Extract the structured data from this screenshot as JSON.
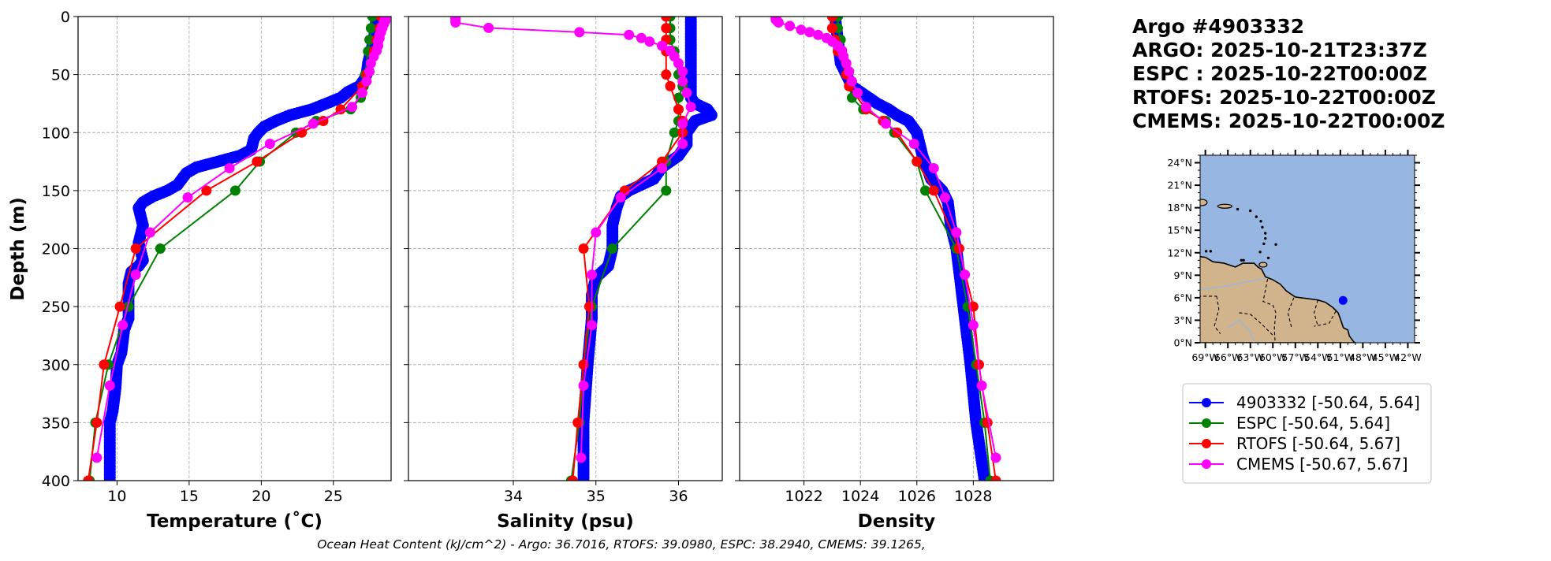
{
  "header": {
    "title_lines": [
      "Argo #4903332",
      "ARGO: 2025-10-21T23:37Z",
      "ESPC : 2025-10-22T00:00Z",
      "RTOFS: 2025-10-22T00:00Z",
      "CMEMS: 2025-10-22T00:00Z"
    ]
  },
  "footer": "Ocean Heat Content (kJ/cm^2) - Argo: 36.7016,  RTOFS: 39.0980,  ESPC: 38.2940,  CMEMS: 39.1265,",
  "colors": {
    "argo": "#0000ff",
    "espc": "#008000",
    "rtofs": "#ff0000",
    "cmems": "#ff00ff",
    "ocean": "#97b6e1",
    "land": "#d2b48c"
  },
  "legend": [
    {
      "label": "4903332 [-50.64, 5.64]",
      "key": "argo"
    },
    {
      "label": "ESPC [-50.64, 5.64]",
      "key": "espc"
    },
    {
      "label": "RTOFS [-50.64, 5.67]",
      "key": "rtofs"
    },
    {
      "label": "CMEMS [-50.67, 5.67]",
      "key": "cmems"
    }
  ],
  "map": {
    "lon_range": [
      -69.7,
      -41.1
    ],
    "lat_range": [
      0,
      25
    ],
    "lon_ticks": [
      "69°W",
      "66°W",
      "63°W",
      "60°W",
      "57°W",
      "54°W",
      "51°W",
      "48°W",
      "45°W",
      "42°W"
    ],
    "lon_tick_values": [
      -69,
      -66,
      -63,
      -60,
      -57,
      -54,
      -51,
      -48,
      -45,
      -42
    ],
    "lat_ticks": [
      "0°N",
      "3°N",
      "6°N",
      "9°N",
      "12°N",
      "15°N",
      "18°N",
      "21°N",
      "24°N"
    ],
    "lat_tick_values": [
      0,
      3,
      6,
      9,
      12,
      15,
      18,
      21,
      24
    ],
    "float_position": [
      -50.64,
      5.64
    ]
  },
  "chart_data": [
    {
      "type": "line",
      "xlabel": "Temperature (˚C)",
      "ylabel": "Depth (m)",
      "xlim": [
        7.3,
        29.0
      ],
      "ylim": [
        400,
        0
      ],
      "xticks": [
        10,
        15,
        20,
        25
      ],
      "yticks": [
        0,
        50,
        100,
        150,
        200,
        250,
        300,
        350,
        400
      ],
      "grid": true,
      "series": [
        {
          "name": "4903332",
          "key": "argo",
          "depth": [
            0,
            10,
            20,
            30,
            40,
            50,
            55,
            60,
            65,
            70,
            75,
            80,
            85,
            90,
            95,
            100,
            105,
            110,
            115,
            120,
            125,
            130,
            135,
            140,
            145,
            150,
            155,
            160,
            165,
            170,
            180,
            195,
            200,
            210,
            215,
            220,
            230,
            245,
            260,
            270,
            290,
            300,
            320,
            340,
            350,
            370,
            400
          ],
          "values": [
            28.0,
            27.9,
            27.8,
            27.6,
            27.4,
            27.3,
            27.1,
            26.8,
            26.0,
            25.5,
            24.5,
            23.5,
            22.0,
            21.0,
            20.2,
            19.8,
            19.5,
            19.4,
            19.3,
            18.5,
            17.0,
            15.5,
            14.8,
            14.5,
            14.2,
            13.5,
            12.5,
            11.8,
            11.5,
            11.6,
            11.8,
            11.5,
            11.6,
            11.8,
            11.5,
            11.0,
            10.8,
            10.8,
            10.8,
            10.5,
            10.3,
            10.0,
            9.9,
            9.7,
            9.5,
            9.5,
            9.5
          ]
        },
        {
          "name": "ESPC",
          "key": "espc",
          "depth": [
            0,
            10,
            20,
            30,
            50,
            60,
            70,
            80,
            90,
            100,
            125,
            150,
            200,
            250,
            300,
            350,
            400
          ],
          "values": [
            27.7,
            27.6,
            27.5,
            27.4,
            27.2,
            27.1,
            26.9,
            26.2,
            23.8,
            22.4,
            19.9,
            18.2,
            13.0,
            10.8,
            9.4,
            8.5,
            8.1
          ]
        },
        {
          "name": "RTOFS",
          "key": "rtofs",
          "depth": [
            0,
            10,
            20,
            30,
            50,
            60,
            80,
            90,
            100,
            125,
            150,
            200,
            250,
            300,
            350,
            400
          ],
          "values": [
            28.3,
            28.2,
            28.0,
            27.8,
            27.3,
            27.0,
            25.5,
            24.3,
            22.8,
            19.7,
            16.2,
            11.3,
            10.2,
            9.1,
            8.6,
            8.0
          ]
        },
        {
          "name": "CMEMS",
          "key": "cmems",
          "depth": [
            0.5,
            1.5,
            2.6,
            3.8,
            5.1,
            6.5,
            8.1,
            9.8,
            11.4,
            13.5,
            15.8,
            18.5,
            21.6,
            25.2,
            29.4,
            34.4,
            40.3,
            47.4,
            55.8,
            65.8,
            77.9,
            92.3,
            109.7,
            130.7,
            155.9,
            186.1,
            222.5,
            266.0,
            318.1,
            380.2
          ],
          "values": [
            28.6,
            28.6,
            28.6,
            28.6,
            28.5,
            28.5,
            28.4,
            28.4,
            28.3,
            28.3,
            28.2,
            28.2,
            28.1,
            28.1,
            28.0,
            27.8,
            27.6,
            27.5,
            27.3,
            27.0,
            26.3,
            23.6,
            20.6,
            17.8,
            14.9,
            12.3,
            11.3,
            10.4,
            9.5,
            8.6
          ]
        }
      ]
    },
    {
      "type": "line",
      "xlabel": "Salinity (psu)",
      "xlim": [
        32.73,
        36.53
      ],
      "ylim": [
        400,
        0
      ],
      "xticks": [
        34,
        35,
        36
      ],
      "yticks": [
        0,
        50,
        100,
        150,
        200,
        250,
        300,
        350,
        400
      ],
      "grid": true,
      "series": [
        {
          "name": "4903332",
          "key": "argo",
          "depth": [
            0,
            20,
            40,
            60,
            70,
            75,
            80,
            85,
            90,
            100,
            110,
            120,
            130,
            140,
            150,
            155,
            165,
            180,
            200,
            215,
            225,
            240,
            260,
            300,
            350,
            400
          ],
          "values": [
            36.15,
            36.15,
            36.15,
            36.15,
            36.15,
            36.2,
            36.35,
            36.4,
            36.2,
            36.1,
            36.1,
            36.0,
            35.8,
            35.7,
            35.4,
            35.3,
            35.25,
            35.2,
            35.2,
            35.15,
            35.0,
            34.95,
            34.95,
            34.9,
            34.85,
            34.85
          ]
        },
        {
          "name": "ESPC",
          "key": "espc",
          "depth": [
            0,
            10,
            20,
            30,
            50,
            60,
            70,
            80,
            90,
            100,
            125,
            150,
            200,
            250,
            300,
            350,
            400
          ],
          "values": [
            35.9,
            35.9,
            35.9,
            35.95,
            36.0,
            36.05,
            36.0,
            36.0,
            36.0,
            35.95,
            35.85,
            35.85,
            35.2,
            34.95,
            34.85,
            34.8,
            34.7
          ]
        },
        {
          "name": "RTOFS",
          "key": "rtofs",
          "depth": [
            0,
            10,
            20,
            30,
            50,
            60,
            80,
            90,
            100,
            125,
            150,
            200,
            250,
            300,
            350,
            400
          ],
          "values": [
            35.85,
            35.85,
            35.85,
            35.85,
            35.85,
            35.9,
            36.0,
            36.05,
            36.05,
            35.8,
            35.35,
            34.85,
            34.92,
            34.85,
            34.78,
            34.72
          ]
        },
        {
          "name": "CMEMS",
          "key": "cmems",
          "depth": [
            0.5,
            1.5,
            2.6,
            3.8,
            5.1,
            9.8,
            13.5,
            15.8,
            18.5,
            21.6,
            25.2,
            29.4,
            34.4,
            40.3,
            47.4,
            55.8,
            65.8,
            77.9,
            92.3,
            109.7,
            130.7,
            155.9,
            186.1,
            222.5,
            266.0,
            318.1,
            380.2
          ],
          "values": [
            33.3,
            33.3,
            33.3,
            33.3,
            33.3,
            33.7,
            34.8,
            35.4,
            35.55,
            35.65,
            35.8,
            35.9,
            35.95,
            36.0,
            36.05,
            36.05,
            36.1,
            36.15,
            36.05,
            36.05,
            35.8,
            35.3,
            35.0,
            34.95,
            34.95,
            34.85,
            34.82
          ]
        }
      ]
    },
    {
      "type": "line",
      "xlabel": "Density",
      "xlim": [
        1019.72,
        1030.84
      ],
      "ylim": [
        400,
        0
      ],
      "xticks": [
        1022,
        1024,
        1026,
        1028
      ],
      "yticks": [
        0,
        50,
        100,
        150,
        200,
        250,
        300,
        350,
        400
      ],
      "grid": true,
      "series": [
        {
          "name": "4903332",
          "key": "argo",
          "depth": [
            0,
            20,
            40,
            50,
            60,
            70,
            75,
            80,
            85,
            90,
            100,
            110,
            120,
            140,
            150,
            160,
            180,
            200,
            220,
            260,
            300,
            350,
            400
          ],
          "values": [
            1023.1,
            1023.2,
            1023.3,
            1023.5,
            1023.7,
            1024.3,
            1024.6,
            1025.0,
            1025.3,
            1025.7,
            1026.0,
            1026.1,
            1026.2,
            1026.5,
            1026.9,
            1027.1,
            1027.2,
            1027.4,
            1027.5,
            1027.7,
            1027.9,
            1028.1,
            1028.4
          ]
        },
        {
          "name": "ESPC",
          "key": "espc",
          "depth": [
            0,
            10,
            20,
            30,
            50,
            60,
            70,
            80,
            90,
            100,
            125,
            150,
            200,
            250,
            300,
            350,
            400
          ],
          "values": [
            1023.2,
            1023.2,
            1023.3,
            1023.3,
            1023.5,
            1023.6,
            1023.7,
            1024.1,
            1024.9,
            1025.2,
            1026.0,
            1026.3,
            1027.4,
            1027.8,
            1028.1,
            1028.4,
            1028.6
          ]
        },
        {
          "name": "RTOFS",
          "key": "rtofs",
          "depth": [
            0,
            10,
            20,
            30,
            50,
            60,
            80,
            90,
            100,
            125,
            150,
            200,
            250,
            300,
            350,
            400
          ],
          "values": [
            1023.0,
            1023.0,
            1023.1,
            1023.2,
            1023.5,
            1023.6,
            1024.2,
            1024.8,
            1025.3,
            1026.0,
            1026.6,
            1027.5,
            1028.0,
            1028.2,
            1028.5,
            1028.8
          ]
        },
        {
          "name": "CMEMS",
          "key": "cmems",
          "depth": [
            0.5,
            1.5,
            2.6,
            3.8,
            5.1,
            8.1,
            11.4,
            13.5,
            15.8,
            18.5,
            21.6,
            25.2,
            29.4,
            34.4,
            40.3,
            47.4,
            55.8,
            65.8,
            77.9,
            92.3,
            109.7,
            130.7,
            155.9,
            186.1,
            222.5,
            266.0,
            318.1,
            380.2
          ],
          "values": [
            1021.0,
            1021.0,
            1021.0,
            1021.05,
            1021.1,
            1021.5,
            1021.9,
            1022.2,
            1022.5,
            1022.8,
            1023.0,
            1023.2,
            1023.35,
            1023.4,
            1023.5,
            1023.6,
            1023.7,
            1023.9,
            1024.2,
            1024.9,
            1025.9,
            1026.6,
            1027.0,
            1027.4,
            1027.7,
            1028.0,
            1028.3,
            1028.8
          ]
        }
      ]
    }
  ]
}
